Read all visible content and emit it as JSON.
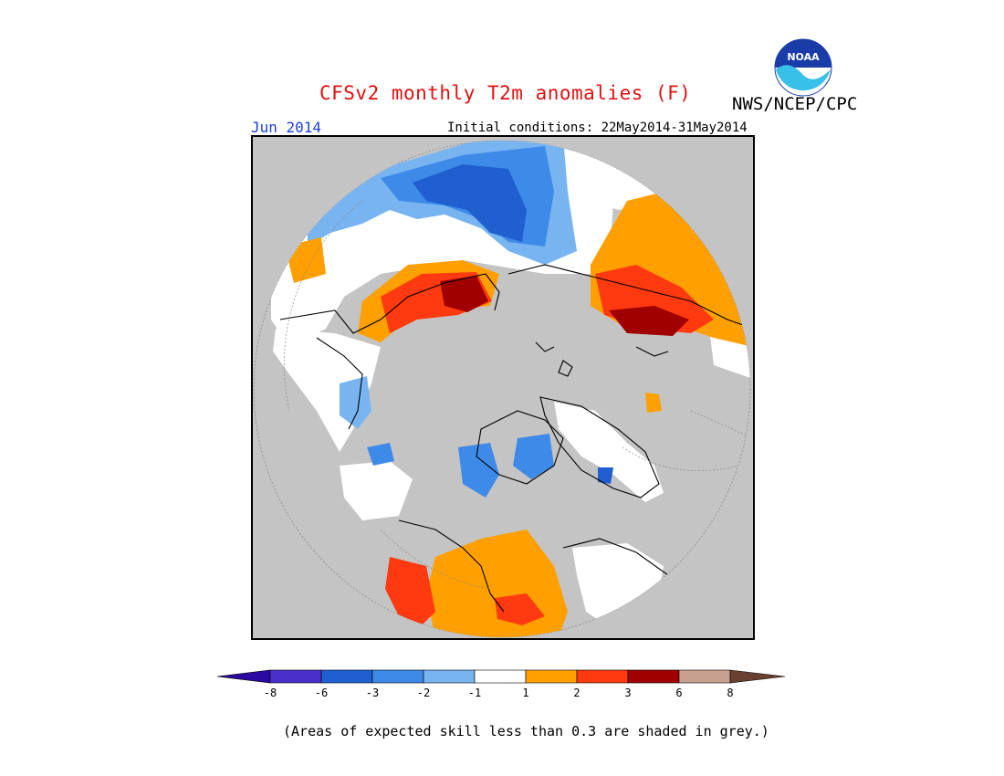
{
  "title": "CFSv2 monthly T2m anomalies (F)",
  "agency": "NWS/NCEP/CPC",
  "logo_text": "NOAA",
  "month": "Jun 2014",
  "initial_conditions": "Initial conditions: 22May2014-31May2014",
  "footnote": "(Areas of expected skill less than 0.3 are shaded in grey.)",
  "colors": {
    "grey": "#c4c4c4",
    "neutral": "#ffffff",
    "c_m8": "#2a0aa0",
    "c_m6": "#4a30c8",
    "c_m3": "#1f5fd0",
    "c_m2": "#3d8ae8",
    "c_m1": "#78b4f0",
    "c_p1": "#ffa000",
    "c_p2": "#ff3a10",
    "c_p3": "#a00000",
    "c_p6": "#c8a090",
    "c_p8": "#6a4030"
  },
  "legend": {
    "ticks": [
      "-8",
      "-6",
      "-3",
      "-2",
      "-1",
      "1",
      "2",
      "3",
      "6",
      "8"
    ],
    "bins": [
      "c_m6",
      "c_m3",
      "c_m2",
      "c_m1",
      "neutral",
      "c_p1",
      "c_p2",
      "c_p3",
      "c_p6"
    ]
  }
}
